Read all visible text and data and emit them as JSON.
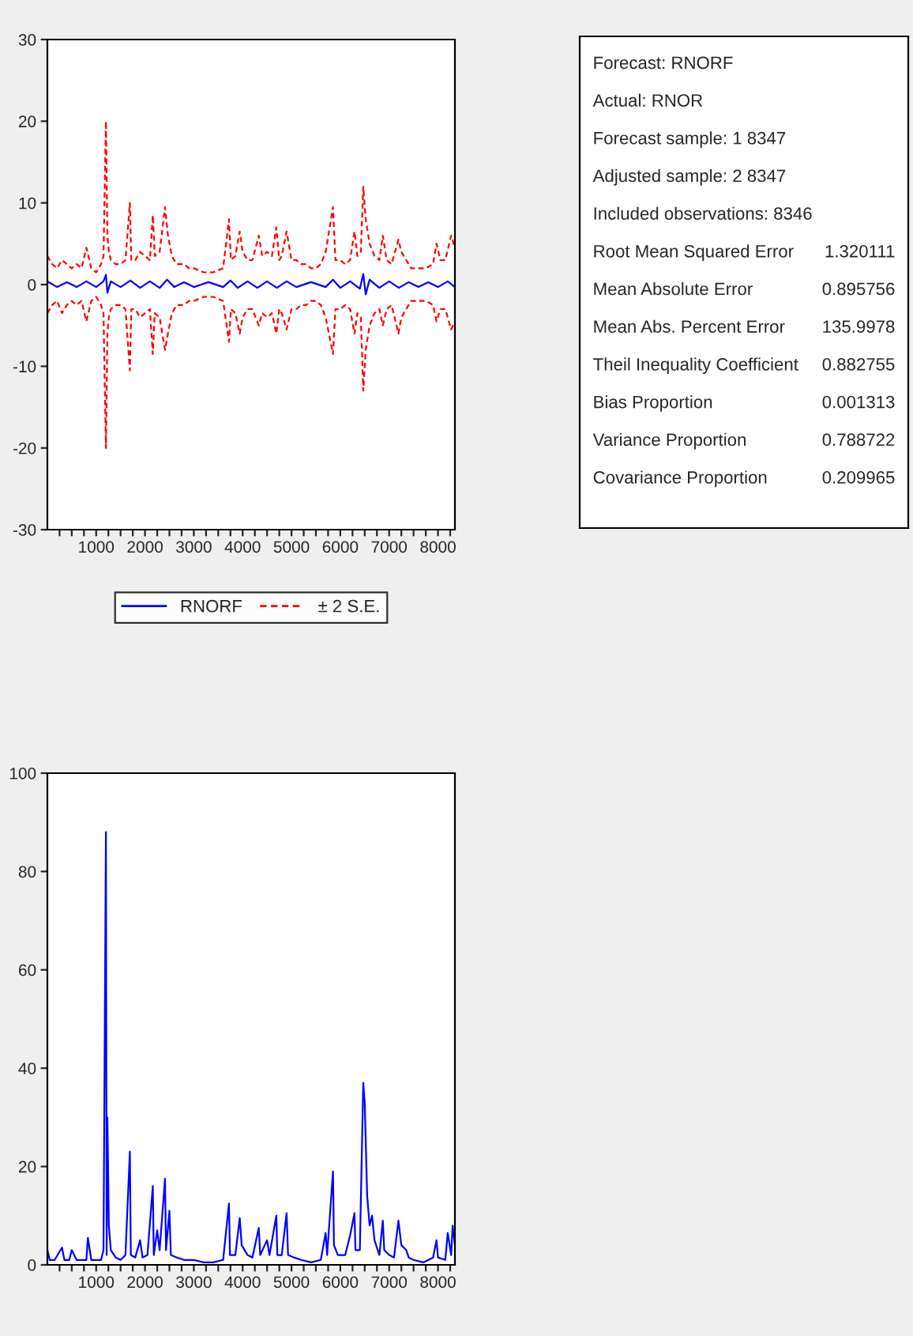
{
  "chart_data": [
    {
      "type": "line",
      "xlim": [
        1,
        8347
      ],
      "ylim": [
        -30,
        30
      ],
      "yticks": [
        -30,
        -20,
        -10,
        0,
        10,
        20,
        30
      ],
      "xticks": [
        {
          "value": 250,
          "label": null
        },
        {
          "value": 500,
          "label": null
        },
        {
          "value": 750,
          "label": null
        },
        1000,
        {
          "value": 1250,
          "label": null
        },
        {
          "value": 1500,
          "label": null
        },
        {
          "value": 1750,
          "label": null
        },
        2000,
        {
          "value": 2250,
          "label": null
        },
        {
          "value": 2500,
          "label": null
        },
        {
          "value": 2750,
          "label": null
        },
        3000,
        {
          "value": 3250,
          "label": null
        },
        {
          "value": 3500,
          "label": null
        },
        {
          "value": 3750,
          "label": null
        },
        4000,
        {
          "value": 4250,
          "label": null
        },
        {
          "value": 4500,
          "label": null
        },
        {
          "value": 4750,
          "label": null
        },
        5000,
        {
          "value": 5250,
          "label": null
        },
        {
          "value": 5500,
          "label": null
        },
        {
          "value": 5750,
          "label": null
        },
        6000,
        {
          "value": 6250,
          "label": null
        },
        {
          "value": 6500,
          "label": null
        },
        {
          "value": 6750,
          "label": null
        },
        7000,
        {
          "value": 7250,
          "label": null
        },
        {
          "value": 7500,
          "label": null
        },
        {
          "value": 7750,
          "label": null
        },
        8000,
        {
          "value": 8250,
          "label": null
        }
      ],
      "legend": "bottom",
      "grid": false,
      "series": [
        {
          "name": "RNORF",
          "color": "#0000ff",
          "line_style": "solid",
          "x": [
            1,
            200,
            400,
            600,
            800,
            1000,
            1150,
            1200,
            1230,
            1300,
            1500,
            1700,
            1900,
            2100,
            2300,
            2450,
            2600,
            2800,
            3000,
            3300,
            3600,
            3750,
            3900,
            4100,
            4300,
            4500,
            4700,
            4900,
            5100,
            5400,
            5700,
            5850,
            6000,
            6200,
            6400,
            6470,
            6520,
            6600,
            6800,
            7000,
            7200,
            7400,
            7600,
            7800,
            8000,
            8200,
            8347
          ],
          "values": [
            0.4,
            -0.3,
            0.3,
            -0.3,
            0.4,
            -0.3,
            0.4,
            1.2,
            -1.0,
            0.4,
            -0.3,
            0.5,
            -0.4,
            0.4,
            -0.4,
            0.6,
            -0.3,
            0.3,
            -0.3,
            0.3,
            -0.3,
            0.5,
            -0.4,
            0.4,
            -0.4,
            0.4,
            -0.4,
            0.4,
            -0.3,
            0.3,
            -0.3,
            0.6,
            -0.4,
            0.4,
            -0.5,
            1.3,
            -1.2,
            0.6,
            -0.4,
            0.4,
            -0.4,
            0.3,
            -0.3,
            0.3,
            -0.3,
            0.4,
            -0.3
          ]
        },
        {
          "name": "± 2 S.E.",
          "color": "#ff0000",
          "line_style": "dashed",
          "x": [
            1,
            100,
            200,
            300,
            400,
            500,
            600,
            700,
            800,
            900,
            1000,
            1100,
            1150,
            1200,
            1230,
            1260,
            1300,
            1400,
            1500,
            1600,
            1690,
            1720,
            1800,
            1900,
            2000,
            2100,
            2160,
            2200,
            2300,
            2410,
            2470,
            2550,
            2650,
            2800,
            2900,
            3000,
            3200,
            3400,
            3600,
            3720,
            3760,
            3850,
            3940,
            4000,
            4100,
            4200,
            4330,
            4400,
            4500,
            4600,
            4690,
            4750,
            4800,
            4900,
            5000,
            5100,
            5200,
            5300,
            5400,
            5500,
            5600,
            5700,
            5850,
            5900,
            6000,
            6100,
            6200,
            6290,
            6350,
            6420,
            6470,
            6520,
            6600,
            6700,
            6800,
            6870,
            6950,
            7050,
            7190,
            7250,
            7350,
            7450,
            7600,
            7750,
            7900,
            7970,
            8050,
            8150,
            8270,
            8347
          ],
          "values": [
            3.5,
            2.5,
            2,
            3,
            2.5,
            2,
            2.5,
            2,
            4.5,
            2,
            1.5,
            2.5,
            3.5,
            20,
            6,
            4,
            3,
            2.5,
            2.5,
            3,
            10,
            3,
            3,
            4,
            3.5,
            3,
            8.5,
            3.5,
            4,
            9.5,
            6,
            3.5,
            2.5,
            2.5,
            2,
            2,
            1.5,
            1.5,
            2,
            8,
            3,
            3.5,
            6.5,
            4,
            3,
            3,
            6,
            3.5,
            4,
            3.5,
            7,
            3,
            3.5,
            6.5,
            3,
            3,
            2.5,
            2.5,
            2,
            2,
            2.5,
            4,
            9.5,
            3,
            3,
            2.5,
            3,
            6.5,
            3.5,
            4,
            12,
            8,
            5,
            3.5,
            3,
            6,
            3,
            2.5,
            5.5,
            4,
            3,
            2,
            2,
            2,
            2.5,
            5,
            3,
            3,
            6,
            4.5
          ]
        },
        {
          "color": "#ff0000",
          "line_style": "dashed",
          "x": [
            1,
            100,
            200,
            300,
            400,
            500,
            600,
            700,
            800,
            900,
            1000,
            1100,
            1150,
            1200,
            1230,
            1260,
            1300,
            1400,
            1500,
            1600,
            1690,
            1720,
            1800,
            1900,
            2000,
            2100,
            2160,
            2200,
            2300,
            2410,
            2470,
            2550,
            2650,
            2800,
            2900,
            3000,
            3200,
            3400,
            3600,
            3720,
            3760,
            3850,
            3940,
            4000,
            4100,
            4200,
            4330,
            4400,
            4500,
            4600,
            4690,
            4750,
            4800,
            4900,
            5000,
            5100,
            5200,
            5300,
            5400,
            5500,
            5600,
            5700,
            5850,
            5900,
            6000,
            6100,
            6200,
            6290,
            6350,
            6420,
            6470,
            6520,
            6600,
            6700,
            6800,
            6870,
            6950,
            7050,
            7190,
            7250,
            7350,
            7450,
            7600,
            7750,
            7900,
            7970,
            8050,
            8150,
            8270,
            8347
          ],
          "values": [
            -3.5,
            -2.5,
            -2,
            -3.5,
            -2.5,
            -2,
            -2.5,
            -2,
            -4.5,
            -2,
            -1.5,
            -2.5,
            -3.5,
            -20,
            -6,
            -4,
            -3,
            -2.5,
            -2.5,
            -3,
            -10.5,
            -3,
            -3,
            -4,
            -3.5,
            -3,
            -8.5,
            -3.5,
            -4,
            -8,
            -6,
            -3.5,
            -2.5,
            -2.5,
            -2,
            -2,
            -1.5,
            -1.5,
            -2,
            -7,
            -3,
            -3.5,
            -6,
            -4,
            -3,
            -3,
            -5,
            -3.5,
            -4,
            -3.5,
            -6,
            -3,
            -3.5,
            -5.5,
            -3,
            -3,
            -2.5,
            -2.5,
            -2,
            -2,
            -2.5,
            -4,
            -8.5,
            -3,
            -3,
            -2.5,
            -3,
            -6,
            -3.5,
            -4,
            -13,
            -8,
            -5,
            -3.5,
            -3,
            -5,
            -3,
            -2.5,
            -6,
            -4,
            -3,
            -2,
            -2,
            -2,
            -2.5,
            -4.5,
            -3,
            -3,
            -5.5,
            -4.5
          ]
        }
      ]
    },
    {
      "type": "other",
      "annotations": [
        "Forecast: RNORF",
        "Actual: RNOR",
        "Forecast sample: 1 8347",
        "Adjusted sample: 2 8347",
        "Included observations: 8346"
      ],
      "categories": [
        "Root Mean Squared Error",
        "Mean Absolute Error",
        "Mean Abs. Percent Error",
        "Theil Inequality Coefficient",
        "Bias Proportion",
        "Variance Proportion",
        "Covariance Proportion"
      ],
      "values": [
        1.320111,
        0.895756,
        135.9978,
        0.882755,
        0.001313,
        0.788722,
        0.209965
      ],
      "data_labels": true
    },
    {
      "type": "line",
      "xlim": [
        1,
        8347
      ],
      "ylim": [
        0,
        100
      ],
      "yticks": [
        0,
        20,
        40,
        60,
        80,
        100
      ],
      "grid": false,
      "xticks": [
        {
          "value": 250,
          "label": null
        },
        {
          "value": 500,
          "label": null
        },
        {
          "value": 750,
          "label": null
        },
        1000,
        {
          "value": 1250,
          "label": null
        },
        {
          "value": 1500,
          "label": null
        },
        {
          "value": 1750,
          "label": null
        },
        2000,
        {
          "value": 2250,
          "label": null
        },
        {
          "value": 2500,
          "label": null
        },
        {
          "value": 2750,
          "label": null
        },
        3000,
        {
          "value": 3250,
          "label": null
        },
        {
          "value": 3500,
          "label": null
        },
        {
          "value": 3750,
          "label": null
        },
        4000,
        {
          "value": 4250,
          "label": null
        },
        {
          "value": 4500,
          "label": null
        },
        {
          "value": 4750,
          "label": null
        },
        5000,
        {
          "value": 5250,
          "label": null
        },
        {
          "value": 5500,
          "label": null
        },
        {
          "value": 5750,
          "label": null
        },
        6000,
        {
          "value": 6250,
          "label": null
        },
        {
          "value": 6500,
          "label": null
        },
        {
          "value": 6750,
          "label": null
        },
        7000,
        {
          "value": 7250,
          "label": null
        },
        {
          "value": 7500,
          "label": null
        },
        {
          "value": 7750,
          "label": null
        },
        8000,
        {
          "value": 8250,
          "label": null
        }
      ],
      "series": [
        {
          "color": "#0000ff",
          "line_style": "solid",
          "x": [
            1,
            50,
            150,
            300,
            350,
            450,
            500,
            600,
            800,
            830,
            900,
            1000,
            1100,
            1150,
            1200,
            1215,
            1230,
            1260,
            1300,
            1400,
            1500,
            1600,
            1690,
            1710,
            1800,
            1900,
            1950,
            2050,
            2160,
            2180,
            2250,
            2300,
            2410,
            2430,
            2500,
            2530,
            2650,
            2800,
            3000,
            3200,
            3400,
            3600,
            3720,
            3740,
            3850,
            3940,
            3980,
            4100,
            4200,
            4330,
            4360,
            4500,
            4550,
            4690,
            4710,
            4800,
            4900,
            4930,
            5050,
            5200,
            5400,
            5600,
            5700,
            5730,
            5850,
            5870,
            5950,
            6100,
            6200,
            6290,
            6310,
            6400,
            6470,
            6500,
            6550,
            6600,
            6650,
            6700,
            6800,
            6870,
            6900,
            7000,
            7100,
            7190,
            7250,
            7350,
            7400,
            7500,
            7700,
            7900,
            7970,
            8000,
            8150,
            8200,
            8270,
            8300,
            8347
          ],
          "values": [
            3,
            1,
            1,
            3.5,
            1,
            1,
            3,
            1,
            1,
            5.5,
            1,
            1,
            1,
            3,
            88,
            2,
            30,
            8,
            3,
            1.5,
            1,
            2,
            23,
            2,
            1.5,
            5,
            1.5,
            2,
            16,
            2,
            7,
            3,
            17.5,
            3,
            11,
            2,
            1.5,
            1,
            1,
            0.5,
            0.5,
            1,
            12.5,
            2,
            2,
            9.5,
            4,
            2,
            1.5,
            7.5,
            2,
            5,
            2,
            10,
            2,
            2,
            10.5,
            2,
            1.5,
            1,
            0.5,
            1,
            6.5,
            2,
            19,
            4,
            2,
            2,
            6,
            10.5,
            3,
            3,
            37,
            33,
            14,
            8,
            10,
            5,
            2,
            9,
            3,
            2,
            1.5,
            9,
            4,
            3,
            1.5,
            1,
            0.5,
            1.5,
            5,
            1.5,
            1,
            6.5,
            2,
            8,
            4
          ]
        }
      ]
    }
  ]
}
